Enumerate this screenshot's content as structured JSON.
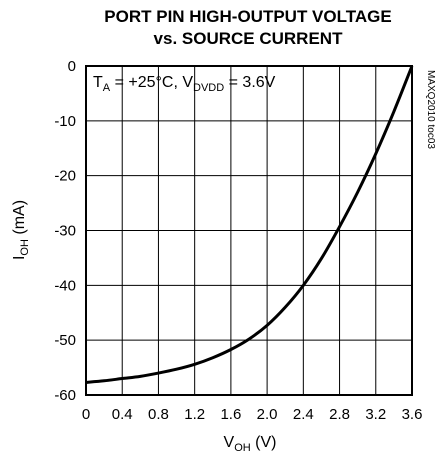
{
  "chart_data": {
    "type": "line",
    "title_line1": "PORT PIN HIGH-OUTPUT VOLTAGE",
    "title_line2": "vs. SOURCE CURRENT",
    "xlabel": {
      "main": "V",
      "sub": "OH",
      "unit": " (V)"
    },
    "ylabel": {
      "main": "I",
      "sub": "OH",
      "unit": " (mA)"
    },
    "xlim": [
      0,
      3.6
    ],
    "ylim": [
      -60,
      0
    ],
    "x_ticks": [
      "0",
      "0.4",
      "0.8",
      "1.2",
      "1.6",
      "2.0",
      "2.4",
      "2.8",
      "3.2",
      "3.6"
    ],
    "x_tick_values": [
      0,
      0.4,
      0.8,
      1.2,
      1.6,
      2.0,
      2.4,
      2.8,
      3.2,
      3.6
    ],
    "y_ticks": [
      "0",
      "-10",
      "-20",
      "-30",
      "-40",
      "-50",
      "-60"
    ],
    "y_tick_values": [
      0,
      -10,
      -20,
      -30,
      -40,
      -50,
      -60
    ],
    "grid": true,
    "annotation": {
      "t": "T",
      "t_sub": "A",
      "t_val": " = +25°C, V",
      "v_sub": "DVDD",
      "v_val": " = 3.6V"
    },
    "watermark": "MAXQ2010 toc03",
    "series": [
      {
        "x": [
          0,
          0.2,
          0.4,
          0.6,
          0.8,
          1.0,
          1.2,
          1.4,
          1.6,
          1.8,
          2.0,
          2.2,
          2.4,
          2.6,
          2.8,
          3.0,
          3.2,
          3.4,
          3.6
        ],
        "values": [
          -57.7,
          -57.4,
          -57.0,
          -56.6,
          -56.0,
          -55.3,
          -54.4,
          -53.2,
          -51.7,
          -49.8,
          -47.3,
          -44.0,
          -40.0,
          -35.1,
          -29.3,
          -23.0,
          -16.0,
          -8.3,
          0
        ]
      }
    ]
  }
}
